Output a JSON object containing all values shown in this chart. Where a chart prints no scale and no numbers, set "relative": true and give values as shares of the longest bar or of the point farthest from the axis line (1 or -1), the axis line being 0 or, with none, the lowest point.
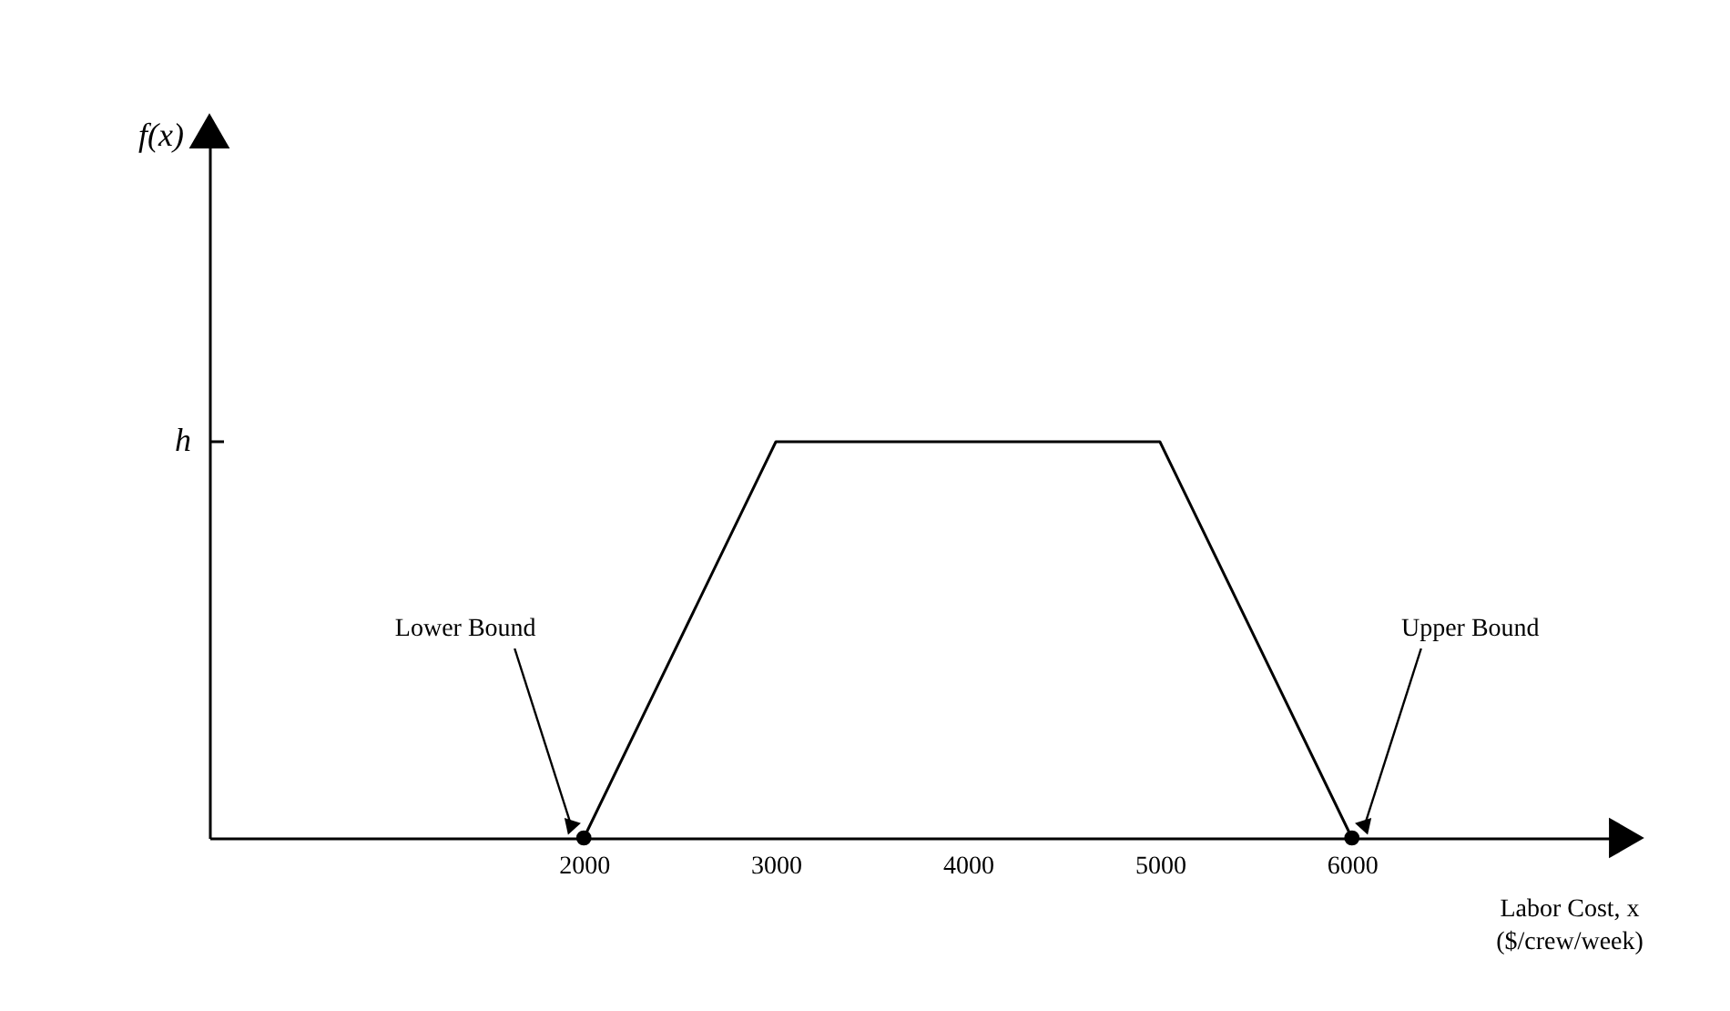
{
  "chart_data": {
    "type": "line",
    "relative": true,
    "xlabel": "Labor Cost, x\n($/crew/week)",
    "xlim": [
      50,
      7400
    ],
    "xticks": [
      2000,
      3000,
      4000,
      5000,
      6000
    ],
    "series": [
      {
        "color": "#000000",
        "x": [
          2000,
          3000,
          5000,
          6000
        ],
        "values": [
          0,
          1,
          1,
          0
        ],
        "marker": "none"
      },
      {
        "type": "scatter",
        "color": "#000000",
        "x": [
          2000,
          6000
        ],
        "values": [
          0,
          0
        ],
        "marker": "circle"
      }
    ],
    "annotations": [
      "f(x)",
      "h",
      "Lower Bound",
      "Upper Bound"
    ],
    "grid": false
  }
}
